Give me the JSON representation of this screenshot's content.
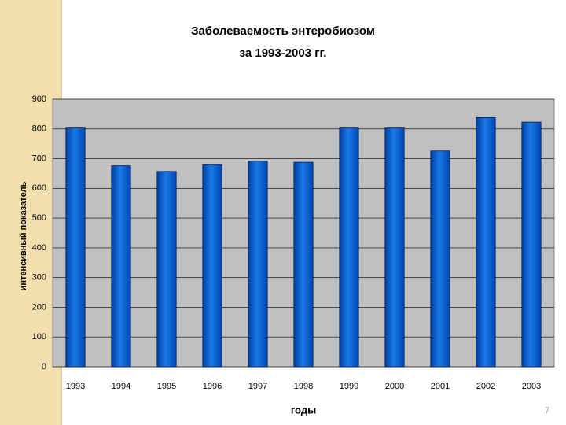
{
  "chart_data": {
    "type": "bar",
    "title": "Заболеваемость энтеробиозом",
    "subtitle": "за 1993-2003 гг.",
    "x_label": "годы",
    "y_label": "интенсивный показатель",
    "categories": [
      "1993",
      "1994",
      "1995",
      "1996",
      "1997",
      "1998",
      "1999",
      "2000",
      "2001",
      "2002",
      "2003"
    ],
    "values": [
      803,
      676,
      657,
      680,
      692,
      688,
      803,
      803,
      726,
      838,
      823
    ],
    "color": "#0a5fd0",
    "ylim": [
      0,
      900
    ],
    "yticks": [
      0,
      100,
      200,
      300,
      400,
      500,
      600,
      700,
      800,
      900
    ],
    "grid": true
  },
  "page_number": "7"
}
